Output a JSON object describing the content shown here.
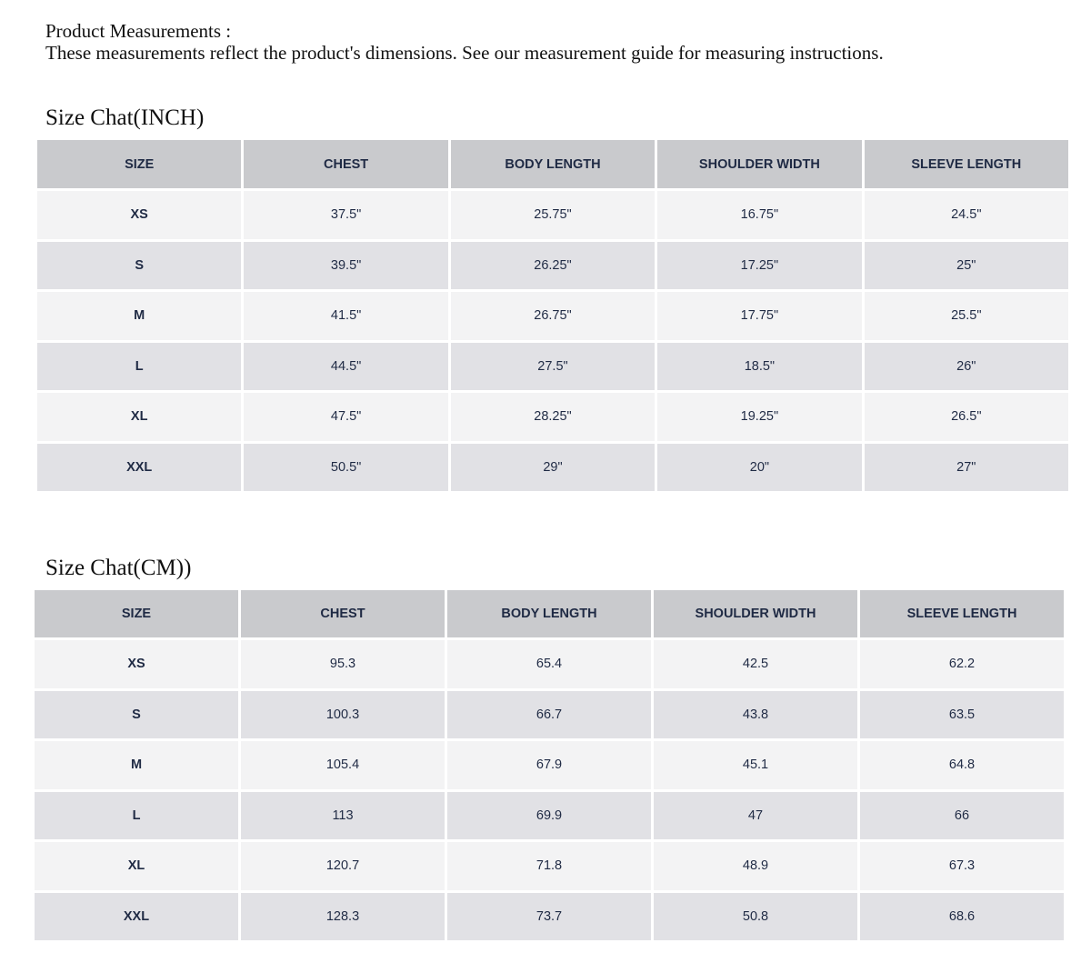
{
  "header": {
    "title": "Product Measurements :",
    "subtitle": "These measurements reflect the product's dimensions. See our measurement guide for measuring instructions."
  },
  "tables": [
    {
      "title": "Size Chat(INCH)",
      "columns": [
        "SIZE",
        "CHEST",
        "BODY LENGTH",
        "SHOULDER WIDTH",
        "SLEEVE LENGTH"
      ],
      "rows": [
        [
          "XS",
          "37.5\"",
          "25.75\"",
          "16.75\"",
          "24.5\""
        ],
        [
          "S",
          "39.5\"",
          "26.25\"",
          "17.25\"",
          "25\""
        ],
        [
          "M",
          "41.5\"",
          "26.75\"",
          "17.75\"",
          "25.5\""
        ],
        [
          "L",
          "44.5\"",
          "27.5\"",
          "18.5\"",
          "26\""
        ],
        [
          "XL",
          "47.5\"",
          "28.25\"",
          "19.25\"",
          "26.5\""
        ],
        [
          "XXL",
          "50.5\"",
          "29\"",
          "20\"",
          "27\""
        ]
      ]
    },
    {
      "title": "Size Chat(CM))",
      "columns": [
        "SIZE",
        "CHEST",
        "BODY LENGTH",
        "SHOULDER WIDTH",
        "SLEEVE LENGTH"
      ],
      "rows": [
        [
          "XS",
          "95.3",
          "65.4",
          "42.5",
          "62.2"
        ],
        [
          "S",
          "100.3",
          "66.7",
          "43.8",
          "63.5"
        ],
        [
          "M",
          "105.4",
          "67.9",
          "45.1",
          "64.8"
        ],
        [
          "L",
          "113",
          "69.9",
          "47",
          "66"
        ],
        [
          "XL",
          "120.7",
          "71.8",
          "48.9",
          "67.3"
        ],
        [
          "XXL",
          "128.3",
          "73.7",
          "50.8",
          "68.6"
        ]
      ]
    }
  ]
}
